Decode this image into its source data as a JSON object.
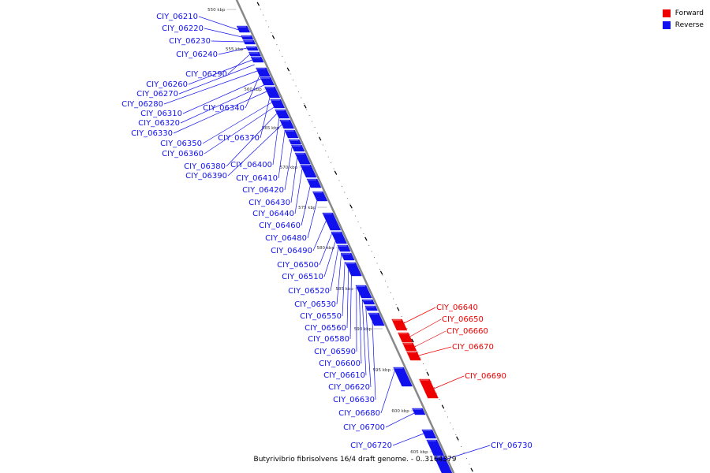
{
  "colors": {
    "forward": "#ee0000",
    "reverse": "#1111ee",
    "backbone": "#888888"
  },
  "legend": [
    {
      "label": "Forward",
      "color": "#ee0000"
    },
    {
      "label": "Reverse",
      "color": "#1111ee"
    }
  ],
  "caption": "Butyrivibrio fibrisolvens 16/4 draft genome. - 0..3164379",
  "ticks": [
    "550 kbp",
    "555 kbp",
    "560 kbp",
    "565 kbp",
    "570 kbp",
    "575 kbp",
    "580 kbp",
    "585 kbp",
    "590 kbp",
    "595 kbp",
    "600 kbp",
    "605 kbp"
  ],
  "reverse_genes": [
    "CIY_06210",
    "CIY_06220",
    "CIY_06230",
    "CIY_06240",
    "CIY_06290",
    "CIY_06260",
    "CIY_06270",
    "CIY_06280",
    "CIY_06340",
    "CIY_06310",
    "CIY_06320",
    "CIY_06330",
    "CIY_06370",
    "CIY_06350",
    "CIY_06360",
    "CIY_06380",
    "CIY_06400",
    "CIY_06390",
    "CIY_06410",
    "CIY_06420",
    "CIY_06430",
    "CIY_06440",
    "CIY_06460",
    "CIY_06480",
    "CIY_06490",
    "CIY_06500",
    "CIY_06510",
    "CIY_06520",
    "CIY_06530",
    "CIY_06550",
    "CIY_06560",
    "CIY_06580",
    "CIY_06590",
    "CIY_06600",
    "CIY_06610",
    "CIY_06620",
    "CIY_06630",
    "CIY_06680",
    "CIY_06700",
    "CIY_06720",
    "CIY_06730"
  ],
  "forward_genes": [
    "CIY_06640",
    "CIY_06650",
    "CIY_06660",
    "CIY_06670",
    "CIY_06690"
  ]
}
